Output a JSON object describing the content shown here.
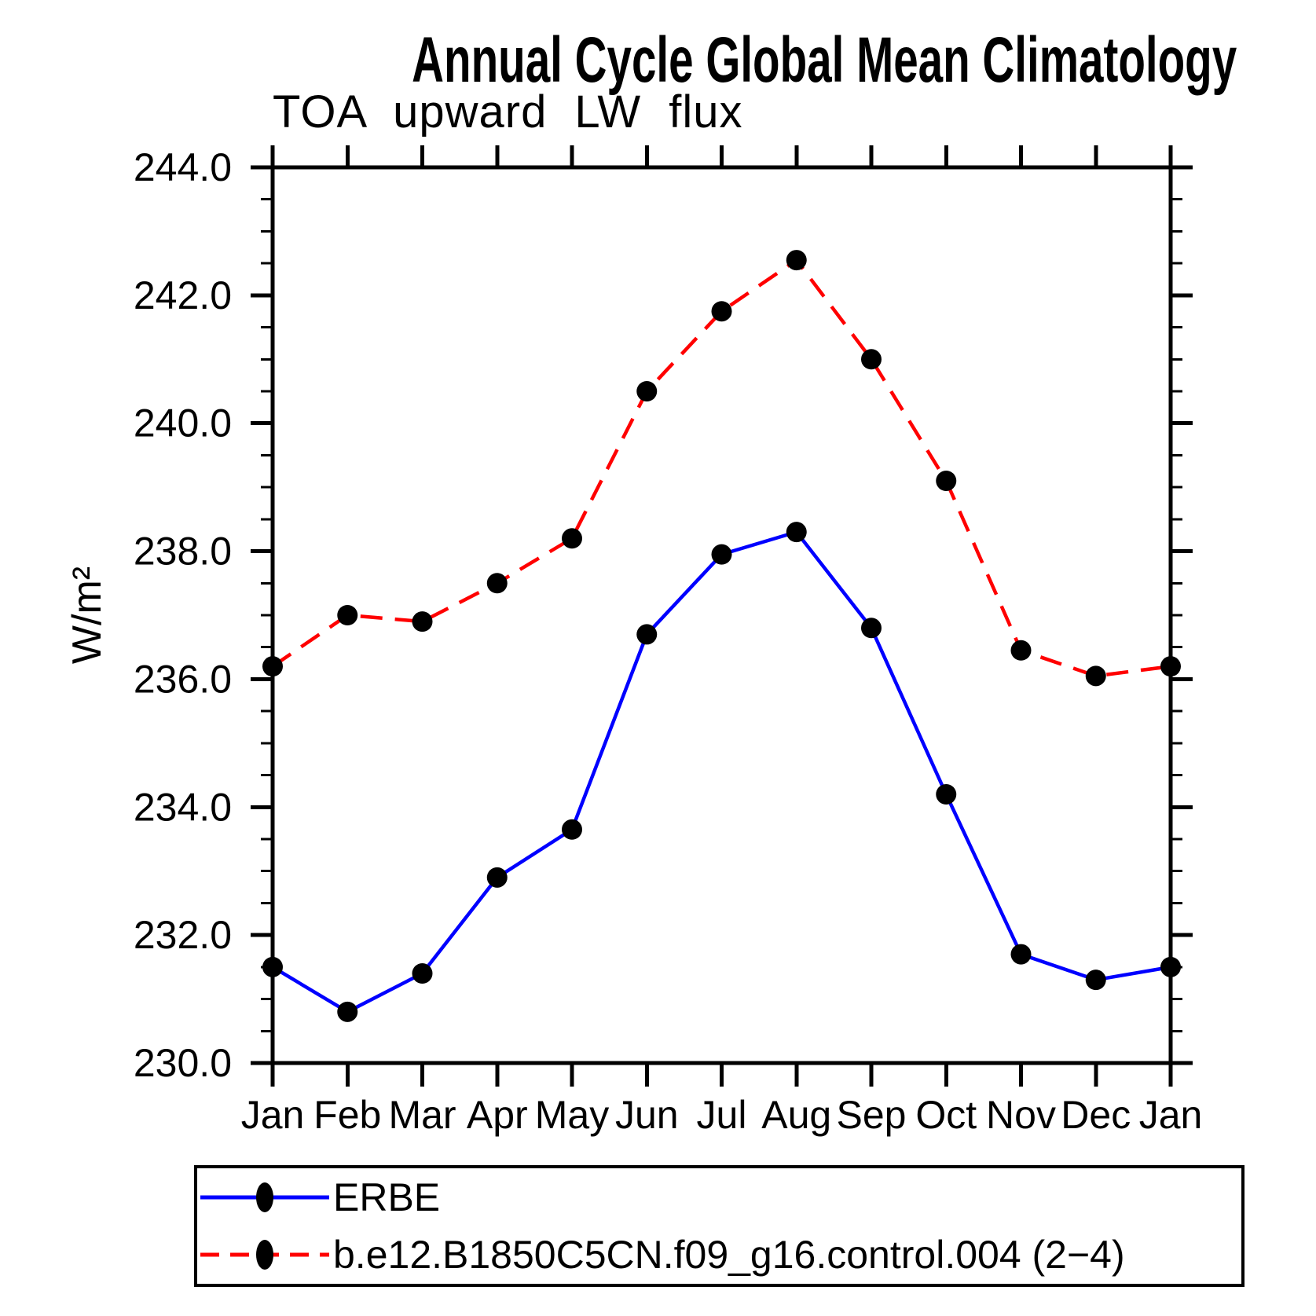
{
  "title": "Annual Cycle Global Mean Climatology",
  "subtitle": "TOA upward LW flux",
  "ylabel": "W/m²",
  "chart_data": {
    "type": "line",
    "categories": [
      "Jan",
      "Feb",
      "Mar",
      "Apr",
      "May",
      "Jun",
      "Jul",
      "Aug",
      "Sep",
      "Oct",
      "Nov",
      "Dec",
      "Jan"
    ],
    "series": [
      {
        "name": "ERBE",
        "color": "#0000ff",
        "style": "solid",
        "marker": "filled-circle",
        "marker_color": "#000000",
        "values": [
          231.5,
          230.8,
          231.4,
          232.9,
          233.65,
          236.7,
          237.95,
          238.3,
          236.8,
          234.2,
          231.7,
          231.3,
          231.5
        ]
      },
      {
        "name": "b.e12.B1850C5CN.f09_g16.control.004 (2−4)",
        "color": "#ff0000",
        "style": "dashed",
        "marker": "filled-circle",
        "marker_color": "#000000",
        "values": [
          236.2,
          237.0,
          236.9,
          237.5,
          238.2,
          240.5,
          241.75,
          242.55,
          241.0,
          239.1,
          236.45,
          236.05,
          236.2
        ]
      }
    ],
    "ylim": [
      230.0,
      244.0
    ],
    "ytick_major": 2.0,
    "ytick_minor": 0.5,
    "ytick_labels": [
      "230.0",
      "232.0",
      "234.0",
      "236.0",
      "238.0",
      "240.0",
      "242.0",
      "244.0"
    ],
    "xlabel": "",
    "ylabel": "W/m²",
    "grid": false,
    "legend_position": "bottom-left-box"
  }
}
